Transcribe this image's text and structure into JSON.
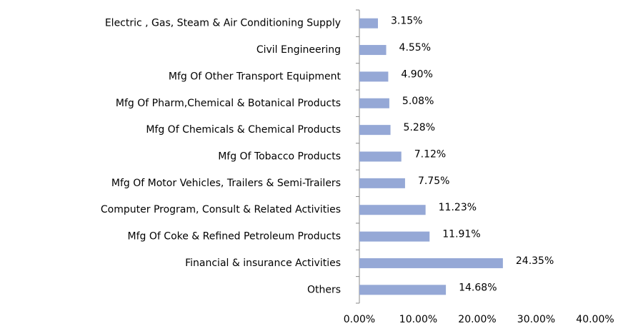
{
  "chart_data": {
    "type": "barh",
    "categories": [
      "Electric , Gas, Steam & Air Conditioning Supply",
      "Civil Engineering",
      "Mfg Of Other Transport Equipment",
      "Mfg Of Pharm,Chemical & Botanical Products",
      "Mfg Of Chemicals & Chemical Products",
      "Mfg Of Tobacco Products",
      "Mfg Of Motor Vehicles, Trailers & Semi-Trailers",
      "Computer Program, Consult & Related Activities",
      "Mfg Of Coke & Refined Petroleum Products",
      "Financial & insurance Activities",
      "Others"
    ],
    "values": [
      3.15,
      4.55,
      4.9,
      5.08,
      5.28,
      7.12,
      7.75,
      11.23,
      11.91,
      24.35,
      14.68
    ],
    "value_labels": [
      "3.15%",
      "4.55%",
      "4.90%",
      "5.08%",
      "5.28%",
      "7.12%",
      "7.75%",
      "11.23%",
      "11.91%",
      "24.35%",
      "14.68%"
    ],
    "color": "#95a8d6",
    "xlim": [
      0,
      40
    ],
    "xticks": [
      {
        "value": 0,
        "label": "0.00%"
      },
      {
        "value": 10,
        "label": "10.00%"
      },
      {
        "value": 20,
        "label": "20.00%"
      },
      {
        "value": 30,
        "label": "30.00%"
      },
      {
        "value": 40,
        "label": "40.00%"
      }
    ]
  }
}
